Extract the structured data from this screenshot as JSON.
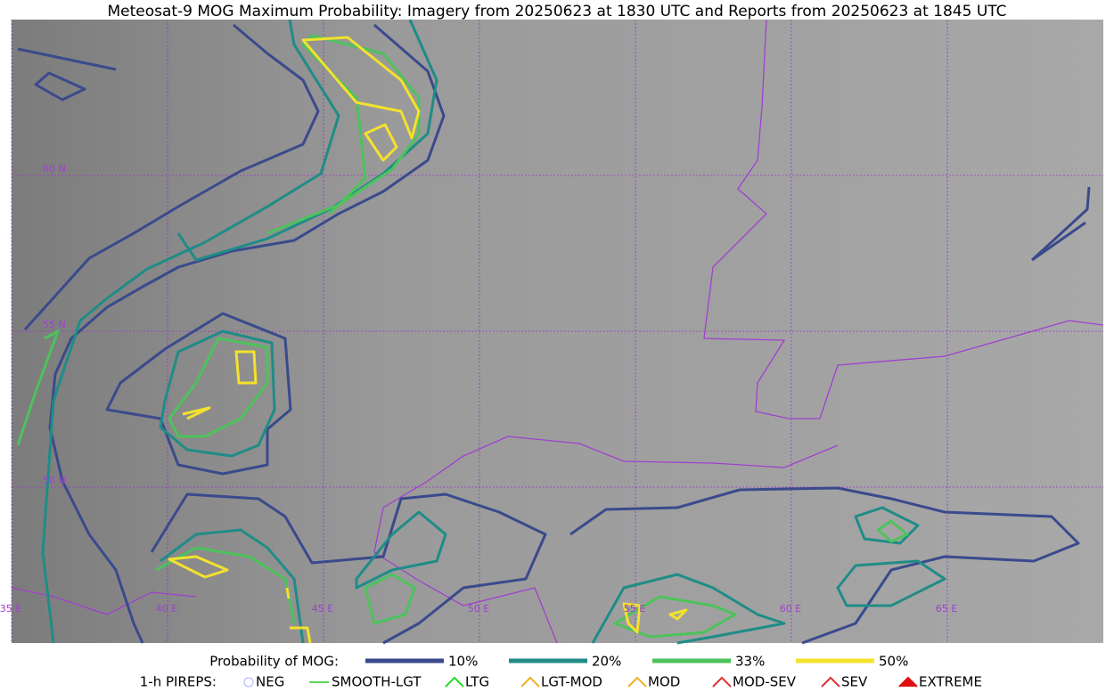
{
  "title": "Meteosat-9 MOG Maximum Probability: Imagery from 20250623 at 1830 UTC and Reports from 20250623 at 1845 UTC",
  "grid_labels": {
    "lat": [
      "60 N",
      "55 N",
      "50 N"
    ],
    "lon": [
      "35 E",
      "40 E",
      "45 E",
      "50 E",
      "55 E",
      "60 E",
      "65 E"
    ]
  },
  "legend": {
    "probability": {
      "label": "Probability of MOG:",
      "items": [
        {
          "label": "10%",
          "color": "#3a4a8c"
        },
        {
          "label": "20%",
          "color": "#1f8c87"
        },
        {
          "label": "33%",
          "color": "#4cc35b"
        },
        {
          "label": "50%",
          "color": "#f3e22b"
        }
      ]
    },
    "pireps": {
      "label": "1-h PIREPS:",
      "items": [
        "NEG",
        "SMOOTH-LGT",
        "LTG",
        "LGT-MOD",
        "MOD",
        "MOD-SEV",
        "SEV",
        "EXTREME"
      ]
    }
  }
}
